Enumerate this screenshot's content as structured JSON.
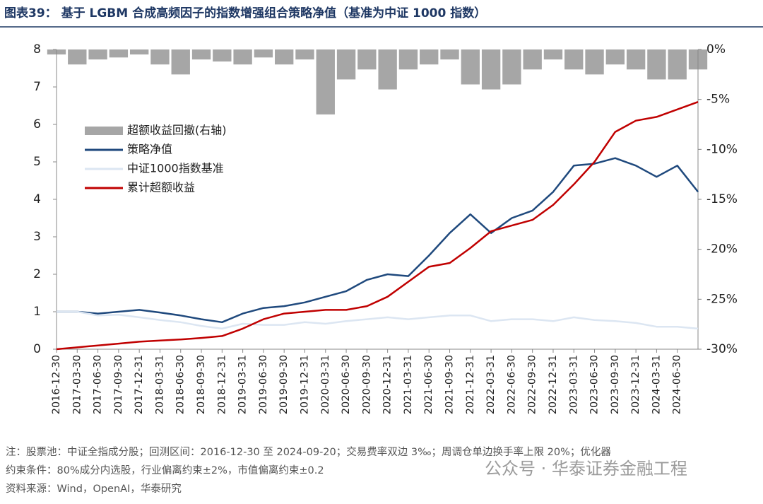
{
  "chart_data": {
    "type": "line",
    "title": "图表39： 基于 LGBM 合成高频因子的指数增强组合策略净值（基准为中证 1000 指数）",
    "categories": [
      "2016-12-30",
      "2017-03-30",
      "2017-06-30",
      "2017-09-30",
      "2017-12-31",
      "2018-03-31",
      "2018-06-30",
      "2018-09-30",
      "2018-12-31",
      "2019-03-31",
      "2019-06-30",
      "2019-09-30",
      "2019-12-31",
      "2020-03-31",
      "2020-06-30",
      "2020-09-30",
      "2020-12-31",
      "2021-03-31",
      "2021-06-30",
      "2021-09-30",
      "2021-12-31",
      "2022-03-31",
      "2022-06-30",
      "2022-09-30",
      "2022-12-31",
      "2023-03-31",
      "2023-06-30",
      "2023-09-30",
      "2023-12-31",
      "2024-03-31",
      "2024-06-30",
      null
    ],
    "series": [
      {
        "name": "超额收益回撤(右轴)",
        "type": "bar",
        "axis": "y2",
        "color": "#a6a6a6",
        "values": [
          -0.5,
          -1.5,
          -1,
          -0.8,
          -0.5,
          -1.5,
          -2.5,
          -1,
          -1.2,
          -1.5,
          -0.8,
          -1.5,
          -1,
          -6.5,
          -3,
          -2,
          -4,
          -2,
          -1.5,
          -1,
          -3.5,
          -4,
          -3.5,
          -2,
          -1,
          -2,
          -2.5,
          -1.5,
          -2,
          -3,
          -3,
          -2
        ]
      },
      {
        "name": "策略净值",
        "type": "line",
        "color": "#1f497d",
        "values": [
          1.0,
          1.0,
          0.95,
          1.0,
          1.05,
          0.98,
          0.9,
          0.8,
          0.72,
          0.95,
          1.1,
          1.15,
          1.25,
          1.4,
          1.55,
          1.85,
          2.0,
          1.95,
          2.5,
          3.1,
          3.6,
          3.1,
          3.5,
          3.7,
          4.2,
          4.9,
          4.95,
          5.1,
          4.9,
          4.6,
          4.9,
          4.2
        ]
      },
      {
        "name": "中证1000指数基准",
        "type": "line",
        "color": "#dce6f2",
        "values": [
          1.0,
          1.0,
          0.9,
          0.92,
          0.85,
          0.78,
          0.72,
          0.62,
          0.55,
          0.68,
          0.65,
          0.65,
          0.72,
          0.68,
          0.75,
          0.8,
          0.85,
          0.8,
          0.85,
          0.9,
          0.9,
          0.75,
          0.8,
          0.8,
          0.75,
          0.85,
          0.78,
          0.75,
          0.7,
          0.6,
          0.6,
          0.55
        ]
      },
      {
        "name": "累计超额收益",
        "type": "line",
        "color": "#c00000",
        "values": [
          0,
          0.05,
          0.1,
          0.15,
          0.2,
          0.23,
          0.26,
          0.3,
          0.35,
          0.55,
          0.8,
          0.95,
          1.0,
          1.05,
          1.05,
          1.15,
          1.4,
          1.8,
          2.2,
          2.3,
          2.7,
          3.15,
          3.3,
          3.45,
          3.85,
          4.4,
          5.0,
          5.8,
          6.1,
          6.2,
          6.4,
          6.6
        ]
      }
    ],
    "ylim": [
      0,
      8
    ],
    "yticks": [
      0,
      1,
      2,
      3,
      4,
      5,
      6,
      7,
      8
    ],
    "y2lim": [
      -30,
      0
    ],
    "y2ticks": [
      {
        "value": 0,
        "label": "0%"
      },
      {
        "value": -5,
        "label": "-5%"
      },
      {
        "value": -10,
        "label": "-10%"
      },
      {
        "value": -15,
        "label": "-15%"
      },
      {
        "value": -20,
        "label": "-20%"
      },
      {
        "value": -25,
        "label": "-25%"
      },
      {
        "value": -30,
        "label": "-30%"
      }
    ],
    "grid": false,
    "legend": "upper left"
  },
  "notes": [
    "注：股票池：中证全指成分股；回测区间：2016-12-30 至 2024-09-20；交易费率双边 3‰；周调仓单边换手率上限 20%；优化器",
    "约束条件：80%成分内选股，行业偏离约束±2%，市值偏离约束±0.2"
  ],
  "source": "资料来源：Wind，OpenAI，华泰研究",
  "watermark": "公众号 · 华泰证券金融工程"
}
